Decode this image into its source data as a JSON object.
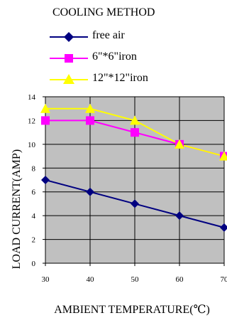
{
  "chart_data": {
    "type": "line",
    "title": "COOLING METHOD",
    "xlabel": "AMBIENT TEMPERATURE(℃)",
    "ylabel": "LOAD CURRENT(AMP)",
    "x": [
      30,
      40,
      50,
      60,
      70
    ],
    "xlim": [
      30,
      70
    ],
    "ylim": [
      0,
      14
    ],
    "xticks": [
      "30",
      "40",
      "50",
      "60",
      "70"
    ],
    "yticks": [
      "0",
      "2",
      "4",
      "6",
      "8",
      "10",
      "12",
      "14"
    ],
    "grid": true,
    "background": "#c0c0c0",
    "legend_position": "top",
    "series": [
      {
        "name": "free air",
        "values": [
          7,
          6,
          5,
          4,
          3
        ],
        "line_color": "#000080",
        "marker_color": "#000080",
        "marker": "diamond"
      },
      {
        "name": "6\"*6\"iron",
        "values": [
          12,
          12,
          11,
          10,
          9
        ],
        "line_color": "#ff00ff",
        "marker_color": "#ff00ff",
        "marker": "square"
      },
      {
        "name": "12\"*12\"iron",
        "values": [
          13,
          13,
          12,
          10,
          9
        ],
        "line_color": "#ffff00",
        "marker_color": "#ffff00",
        "marker": "triangle"
      }
    ]
  }
}
